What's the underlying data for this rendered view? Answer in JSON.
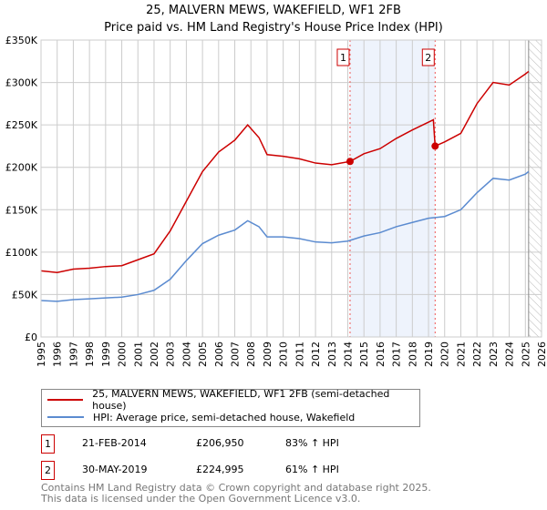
{
  "chart_data": {
    "type": "line",
    "title": "25, MALVERN MEWS, WAKEFIELD, WF1 2FB",
    "subtitle": "Price paid vs. HM Land Registry's House Price Index (HPI)",
    "xlim": [
      1995,
      2026
    ],
    "ylim": [
      0,
      350000
    ],
    "x_ticks": [
      "1995",
      "1996",
      "1997",
      "1998",
      "1999",
      "2000",
      "2001",
      "2002",
      "2003",
      "2004",
      "2005",
      "2006",
      "2007",
      "2008",
      "2009",
      "2010",
      "2011",
      "2012",
      "2013",
      "2014",
      "2015",
      "2016",
      "2017",
      "2018",
      "2019",
      "2020",
      "2021",
      "2022",
      "2023",
      "2024",
      "2025",
      "2026"
    ],
    "y_ticks": [
      {
        "v": 0,
        "l": "£0"
      },
      {
        "v": 50000,
        "l": "£50K"
      },
      {
        "v": 100000,
        "l": "£100K"
      },
      {
        "v": 150000,
        "l": "£150K"
      },
      {
        "v": 200000,
        "l": "£200K"
      },
      {
        "v": 250000,
        "l": "£250K"
      },
      {
        "v": 300000,
        "l": "£300K"
      },
      {
        "v": 350000,
        "l": "£350K"
      }
    ],
    "grid": true,
    "shaded_range": [
      2014.14,
      2019.41
    ],
    "hatched_from": 2025.2,
    "series": [
      {
        "name": "25, MALVERN MEWS, WAKEFIELD, WF1 2FB (semi-detached house)",
        "color": "#cc0000",
        "x": [
          1995,
          1996,
          1997,
          1998,
          1999,
          2000,
          2001,
          2002,
          2003,
          2004,
          2005,
          2006,
          2007,
          2007.8,
          2008.5,
          2009,
          2010,
          2011,
          2012,
          2013,
          2014.14,
          2015,
          2016,
          2017,
          2018,
          2019.3,
          2019.41,
          2020,
          2021,
          2022,
          2023,
          2024,
          2025,
          2025.2
        ],
        "y": [
          78000,
          76000,
          80000,
          81000,
          83000,
          84000,
          91000,
          98000,
          125000,
          160000,
          195000,
          218000,
          232000,
          250000,
          235000,
          215000,
          213000,
          210000,
          205000,
          203000,
          206950,
          216000,
          222000,
          234000,
          244000,
          256000,
          224995,
          230000,
          240000,
          275000,
          300000,
          297000,
          310000,
          313000
        ]
      },
      {
        "name": "HPI: Average price, semi-detached house, Wakefield",
        "color": "#5b8bd0",
        "x": [
          1995,
          1996,
          1997,
          1998,
          1999,
          2000,
          2001,
          2002,
          2003,
          2004,
          2005,
          2006,
          2007,
          2007.8,
          2008.5,
          2009,
          2010,
          2011,
          2012,
          2013,
          2014,
          2015,
          2016,
          2017,
          2018,
          2019,
          2020,
          2021,
          2022,
          2023,
          2024,
          2025,
          2025.2
        ],
        "y": [
          43000,
          42000,
          44000,
          45000,
          46000,
          47000,
          50000,
          55000,
          68000,
          90000,
          110000,
          120000,
          126000,
          137000,
          130000,
          118000,
          118000,
          116000,
          112000,
          111000,
          113000,
          119000,
          123000,
          130000,
          135000,
          140000,
          142000,
          150000,
          170000,
          187000,
          185000,
          192000,
          195000
        ]
      }
    ],
    "annotations": [
      {
        "label": "1",
        "x": 2014.14,
        "y": 206950
      },
      {
        "label": "2",
        "x": 2019.41,
        "y": 224995
      }
    ]
  },
  "legend": {
    "red": "25, MALVERN MEWS, WAKEFIELD, WF1 2FB (semi-detached house)",
    "blue": "HPI: Average price, semi-detached house, Wakefield"
  },
  "sales": [
    {
      "n": "1",
      "date": "21-FEB-2014",
      "price": "£206,950",
      "hpi": "83% ↑ HPI"
    },
    {
      "n": "2",
      "date": "30-MAY-2019",
      "price": "£224,995",
      "hpi": "61% ↑ HPI"
    }
  ],
  "footer": [
    "Contains HM Land Registry data © Crown copyright and database right 2025.",
    "This data is licensed under the Open Government Licence v3.0."
  ]
}
